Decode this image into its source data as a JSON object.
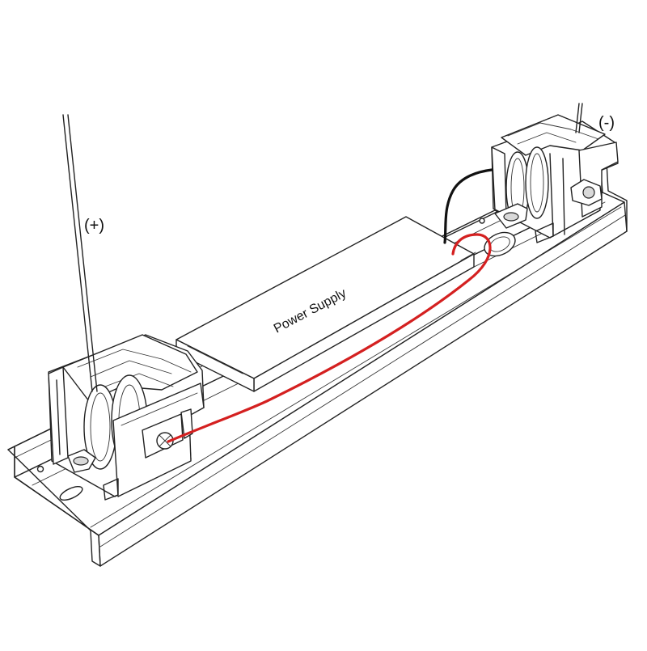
{
  "labels": {
    "power_supply": "Power Supply",
    "positive": "(+)",
    "negative": "(-)"
  },
  "colors": {
    "red_wire": "#d42020",
    "black_wire": "#111111",
    "outline": "#222222"
  }
}
